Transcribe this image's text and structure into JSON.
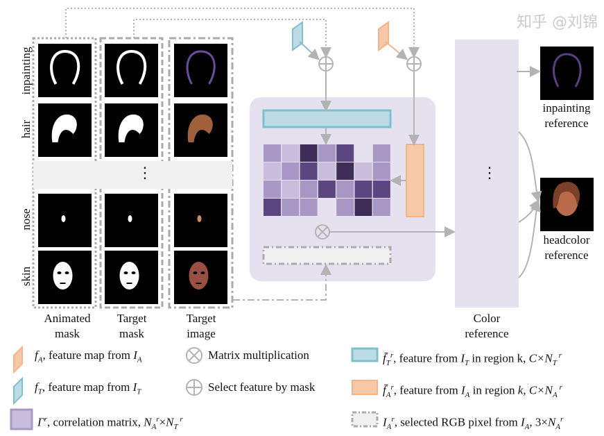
{
  "rows": [
    "inpainting",
    "hair",
    "nose",
    "skin"
  ],
  "columns": {
    "animated_mask": [
      "Animated",
      "mask"
    ],
    "target_mask": [
      "Target",
      "mask"
    ],
    "target_image": [
      "Target",
      "image"
    ],
    "color_reference": [
      "Color",
      "reference"
    ]
  },
  "ellipsis": "⋮",
  "outputs": {
    "inpainting": [
      "inpainting",
      "reference"
    ],
    "headcolor": [
      "headcolor",
      "reference"
    ]
  },
  "correlation_grid": [
    [
      2,
      1,
      4,
      2,
      3,
      0,
      2
    ],
    [
      1,
      2,
      3,
      1,
      4,
      1,
      2
    ],
    [
      2,
      1,
      2,
      3,
      2,
      3,
      3
    ],
    [
      3,
      2,
      2,
      0,
      2,
      4,
      2
    ]
  ],
  "colors": {
    "purple_levels": [
      "#e6e1ee",
      "#c8bddb",
      "#a797c4",
      "#5c467f",
      "#3e2d56"
    ],
    "cyan": "#7fc0cf",
    "cyan_fill": "#bcdbe4",
    "orange": "#f2b48a",
    "orange_fill": "#f6c8a6",
    "panel": "#e6e1ee",
    "arrow": "#b3b3b3"
  },
  "legend": {
    "fA": {
      "sym": "f",
      "sub": "A",
      "text": ", feature map from ",
      "sym2": "I",
      "sub2": "A"
    },
    "fT": {
      "sym": "f",
      "sub": "T",
      "text": ", feature map from ",
      "sym2": "I",
      "sub2": "T"
    },
    "gamma": {
      "sym": "Γ",
      "sup": "r",
      "text": ",  correlation matrix, ",
      "sym2": "N",
      "sub2": "A",
      "sup2": "r",
      "x": "×",
      "sym3": "N",
      "sub3": "T",
      "sup3": " r"
    },
    "matmul": {
      "text": "Matrix multiplication"
    },
    "select": {
      "text": "Select feature by mask"
    },
    "fTbar": {
      "sym": "f̄",
      "sub": "T",
      "sup": "r",
      "text": ", feature from ",
      "sym2": "I",
      "sub2": "T",
      "text2": " in region k, ",
      "c": "C×",
      "sym3": "N",
      "sub3": "T",
      "sup3": " r"
    },
    "fAbar": {
      "sym": "f̄",
      "sub": "A",
      "sup": "r",
      "text": ", feature from ",
      "sym2": "I",
      "sub2": "A",
      "text2": " in region ",
      "k": "k",
      "c": ", C×",
      "sym3": "N",
      "sub3": "A",
      "sup3": " r"
    },
    "IA": {
      "sym": "I",
      "sub": "A",
      "sup": "r",
      "text": ", selected RGB pixel from ",
      "sym2": "I",
      "sub2": "A",
      "c": ", 3×",
      "sym3": "N",
      "sub3": "A",
      "sup3": "r"
    }
  },
  "watermark": "知乎 @刘锦"
}
